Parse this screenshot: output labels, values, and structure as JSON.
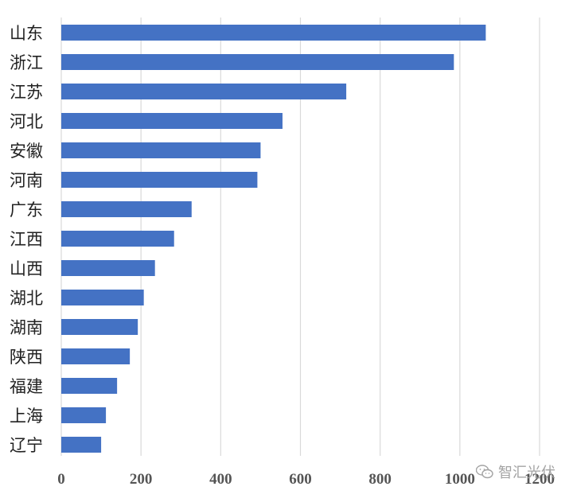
{
  "chart_data": {
    "type": "bar",
    "orientation": "horizontal",
    "categories": [
      "山东",
      "浙江",
      "江苏",
      "河北",
      "安徽",
      "河南",
      "广东",
      "江西",
      "山西",
      "湖北",
      "湖南",
      "陕西",
      "福建",
      "上海",
      "辽宁"
    ],
    "values": [
      1065,
      985,
      715,
      555,
      500,
      492,
      327,
      283,
      235,
      207,
      192,
      172,
      140,
      112,
      100
    ],
    "xlim": [
      0,
      1200
    ],
    "xticks": [
      0,
      200,
      400,
      600,
      800,
      1000,
      1200
    ],
    "xtick_labels": [
      "0",
      "200",
      "400",
      "600",
      "800",
      "1000",
      "1200"
    ],
    "grid": "vertical",
    "bar_color": "#4472C4",
    "grid_color": "#d9d9d9",
    "title": "",
    "xlabel": "",
    "ylabel": ""
  },
  "watermark": {
    "text": "智汇光伏",
    "icon": "wechat-icon"
  }
}
